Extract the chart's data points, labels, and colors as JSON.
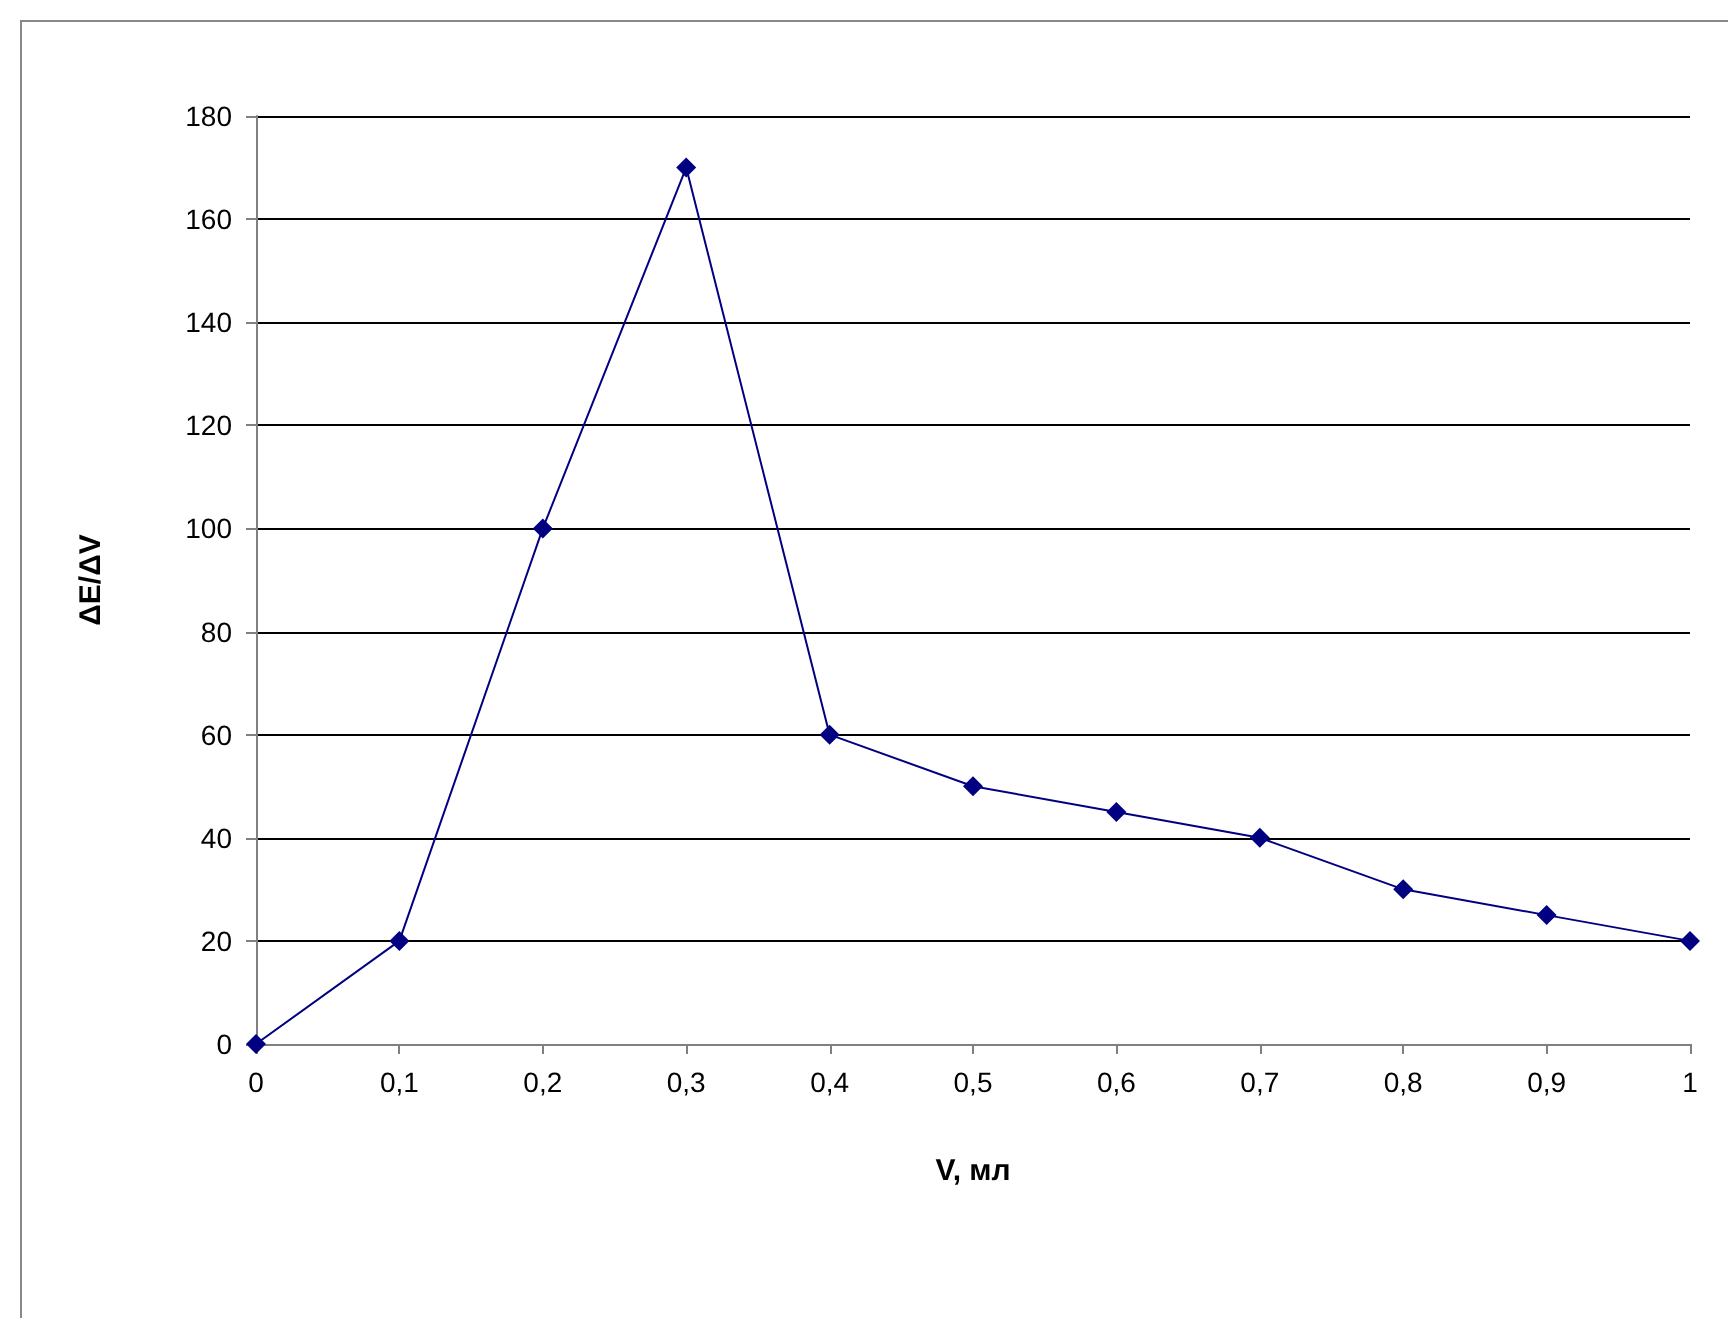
{
  "chart_data": {
    "type": "line",
    "xlabel": "V, мл",
    "ylabel": "ΔE/ΔV",
    "x": [
      0,
      0.1,
      0.2,
      0.3,
      0.4,
      0.5,
      0.6,
      0.7,
      0.8,
      0.9,
      1
    ],
    "series": [
      {
        "color": "#000080",
        "values": [
          0,
          20,
          100,
          170,
          60,
          50,
          45,
          40,
          30,
          25,
          20
        ]
      }
    ],
    "xlim": [
      0,
      1
    ],
    "xticks": [
      0,
      {
        "value": 0.1,
        "label": "0,1"
      },
      {
        "value": 0.2,
        "label": "0,2"
      },
      {
        "value": 0.3,
        "label": "0,3"
      },
      {
        "value": 0.4,
        "label": "0,4"
      },
      {
        "value": 0.5,
        "label": "0,5"
      },
      {
        "value": 0.6,
        "label": "0,6"
      },
      {
        "value": 0.7,
        "label": "0,7"
      },
      {
        "value": 0.8,
        "label": "0,8"
      },
      {
        "value": 0.9,
        "label": "0,9"
      },
      1
    ],
    "ylim": [
      0,
      180
    ],
    "yticks": [
      0,
      20,
      40,
      60,
      80,
      100,
      120,
      140,
      160,
      180
    ],
    "grid": "y",
    "marker": "diamond",
    "line_style": "solid"
  }
}
